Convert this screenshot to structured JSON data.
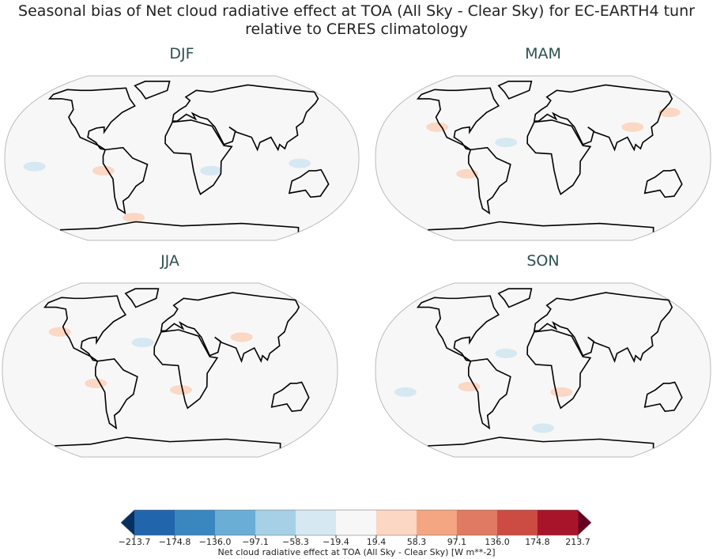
{
  "title": [
    "Seasonal bias of Net cloud radiative effect at TOA (All Sky - Clear Sky) for EC-EARTH4 tunr",
    "relative to CERES climatology"
  ],
  "panels": [
    {
      "title": "DJF"
    },
    {
      "title": "MAM"
    },
    {
      "title": "JJA"
    },
    {
      "title": "SON"
    }
  ],
  "colorbar": {
    "label": "Net cloud radiative effect at TOA (All Sky - Clear Sky) [W m**-2]",
    "ticks": [
      {
        "value": -213.7,
        "label": "−213.7"
      },
      {
        "value": -174.8,
        "label": "−174.8"
      },
      {
        "value": -136.0,
        "label": "−136.0"
      },
      {
        "value": -97.1,
        "label": "−97.1"
      },
      {
        "value": -58.3,
        "label": "−58.3"
      },
      {
        "value": -19.4,
        "label": "−19.4"
      },
      19.4,
      58.3,
      97.1,
      {
        "value": 136.0,
        "label": "136.0"
      },
      174.8,
      213.7
    ],
    "colors": [
      "#2166ac",
      "#3a87c0",
      "#6aaed6",
      "#a6d0e6",
      "#d6e8f2",
      "#f7f7f7",
      "#fbd7c4",
      "#f4a582",
      "#e07a62",
      "#cc4c44",
      "#a8152b"
    ],
    "under_color": "#053061",
    "over_color": "#67001f"
  }
}
